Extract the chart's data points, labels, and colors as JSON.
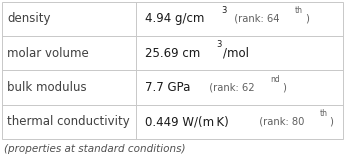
{
  "rows": [
    {
      "label": "density",
      "value_main": "4.94 g/cm",
      "value_sup": "3",
      "value_after": "",
      "rank_pre": "  (rank: 64",
      "rank_sup": "th",
      "rank_end": ")"
    },
    {
      "label": "molar volume",
      "value_main": "25.69 cm",
      "value_sup": "3",
      "value_after": "/mol",
      "rank_pre": "",
      "rank_sup": "",
      "rank_end": ""
    },
    {
      "label": "bulk modulus",
      "value_main": "7.7 GPa",
      "value_sup": "",
      "value_after": "",
      "rank_pre": "  (rank: 62",
      "rank_sup": "nd",
      "rank_end": ")"
    },
    {
      "label": "thermal conductivity",
      "value_main": "0.449 W/(m K)",
      "value_sup": "",
      "value_after": "",
      "rank_pre": "  (rank: 80",
      "rank_sup": "th",
      "rank_end": ")"
    }
  ],
  "footer": "(properties at standard conditions)",
  "bg_color": "#ffffff",
  "border_color": "#c8c8c8",
  "label_color": "#404040",
  "value_color": "#1a1a1a",
  "rank_color": "#606060",
  "footer_color": "#505050",
  "col_split": 0.395,
  "label_fontsize": 8.5,
  "value_fontsize": 8.5,
  "rank_fontsize": 7.2,
  "sup_fontsize": 6.0,
  "footer_fontsize": 7.5
}
